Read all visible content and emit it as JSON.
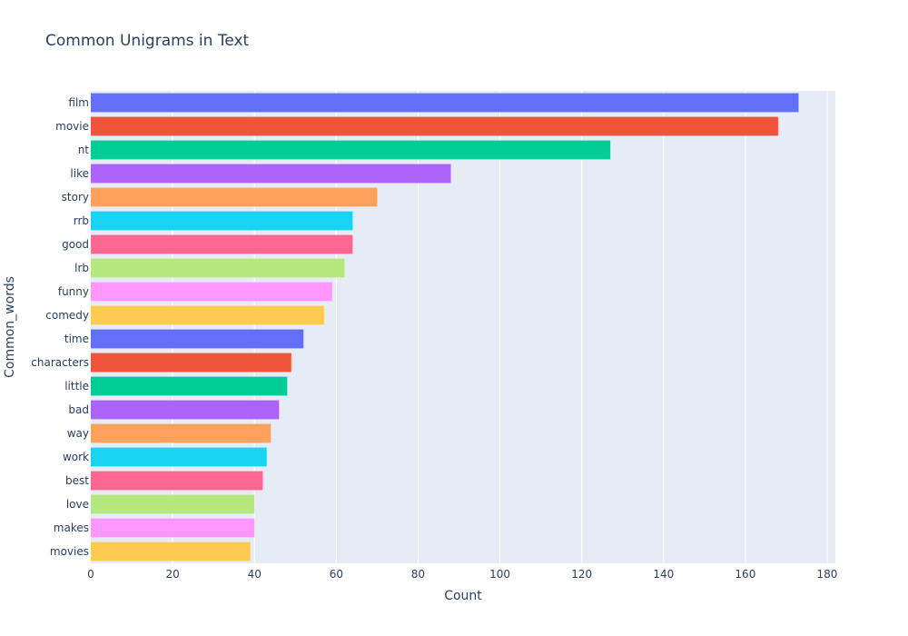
{
  "chart_data": {
    "type": "bar",
    "orientation": "horizontal",
    "title": "Common Unigrams in Text",
    "xlabel": "Count",
    "ylabel": "Common_words",
    "xlim": [
      0,
      182
    ],
    "xticks": [
      0,
      20,
      40,
      60,
      80,
      100,
      120,
      140,
      160,
      180
    ],
    "grid": true,
    "legend": "none",
    "categories": [
      "film",
      "movie",
      "nt",
      "like",
      "story",
      "rrb",
      "good",
      "lrb",
      "funny",
      "comedy",
      "time",
      "characters",
      "little",
      "bad",
      "way",
      "work",
      "best",
      "love",
      "makes",
      "movies"
    ],
    "values": [
      173,
      168,
      127,
      88,
      70,
      64,
      64,
      62,
      59,
      57,
      52,
      49,
      48,
      46,
      44,
      43,
      42,
      40,
      40,
      39
    ],
    "colors": [
      "#636efa",
      "#ef553b",
      "#00cc96",
      "#ab63fa",
      "#ffa15a",
      "#19d3f3",
      "#ff6692",
      "#b6e880",
      "#ff97ff",
      "#fecb52",
      "#636efa",
      "#ef553b",
      "#00cc96",
      "#ab63fa",
      "#ffa15a",
      "#19d3f3",
      "#ff6692",
      "#b6e880",
      "#ff97ff",
      "#fecb52"
    ],
    "plot_background": "#e5ecf6",
    "grid_color": "#ffffff",
    "text_color": "#2a3f5f"
  }
}
